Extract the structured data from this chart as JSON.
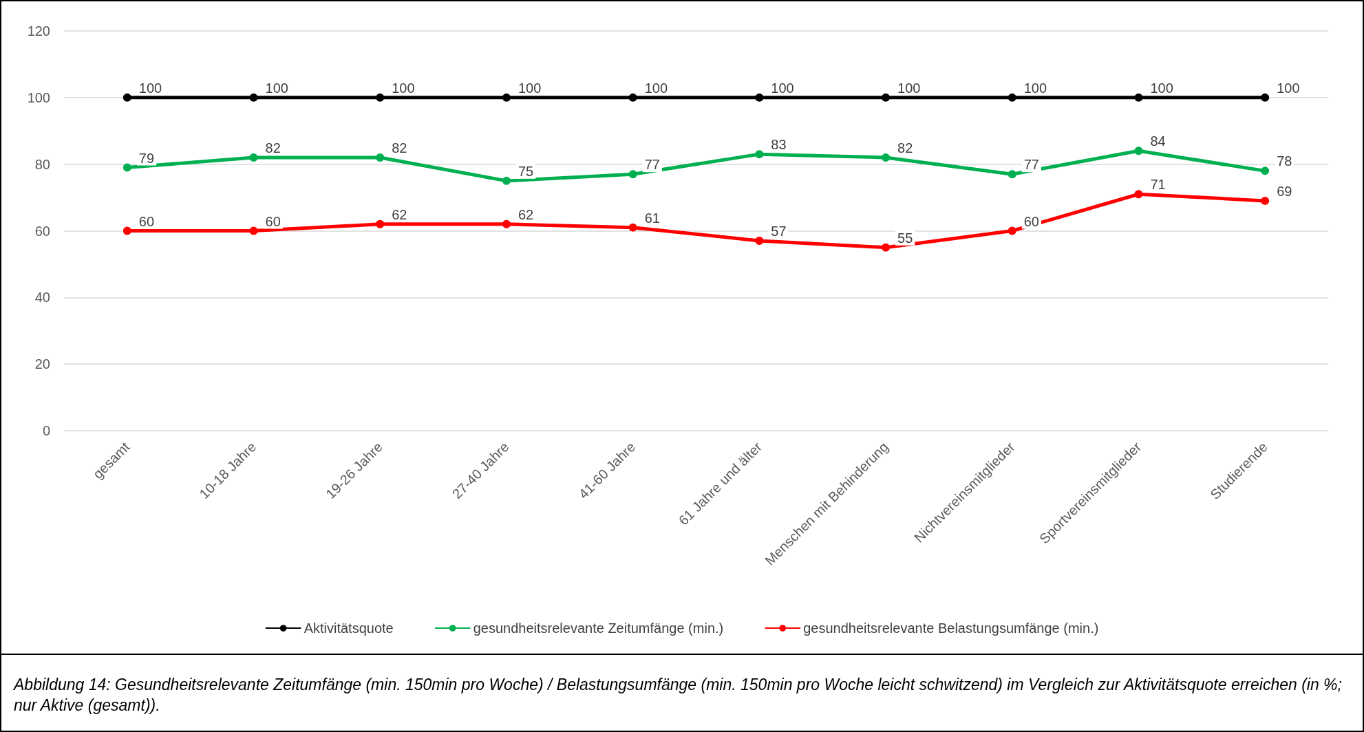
{
  "chart_data": {
    "type": "line",
    "categories": [
      "gesamt",
      "10-18 Jahre",
      "19-26 Jahre",
      "27-40 Jahre",
      "41-60 Jahre",
      "61 Jahre und älter",
      "Menschen mit Behinderung",
      "Nichtvereinsmitglieder",
      "Sportvereinsmitglieder",
      "Studierende"
    ],
    "series": [
      {
        "name": "Aktivitätsquote",
        "color": "#000000",
        "values": [
          100,
          100,
          100,
          100,
          100,
          100,
          100,
          100,
          100,
          100
        ]
      },
      {
        "name": "gesundheitsrelevante Zeitumfänge (min.)",
        "color": "#00b050",
        "values": [
          79,
          82,
          82,
          75,
          77,
          83,
          82,
          77,
          84,
          78
        ]
      },
      {
        "name": "gesundheitsrelevante Belastungsumfänge (min.)",
        "color": "#ff0000",
        "values": [
          60,
          60,
          62,
          62,
          61,
          57,
          55,
          60,
          71,
          69
        ]
      }
    ],
    "ylim": [
      0,
      120
    ],
    "yticks": [
      0,
      20,
      40,
      60,
      80,
      100,
      120
    ],
    "grid": "y",
    "legend": "bottom",
    "marker": "circle",
    "line_style": "solid",
    "data_labels": true,
    "annotations": [
      "Abbildung 14: Gesundheitsrelevante Zeitumfänge (min. 150min pro Woche) / Belastungsumfänge (min. 150min pro Woche leicht schwitzend) im Vergleich zur Aktivitätsquote erreichen (in %; nur Aktive (gesamt))."
    ]
  }
}
